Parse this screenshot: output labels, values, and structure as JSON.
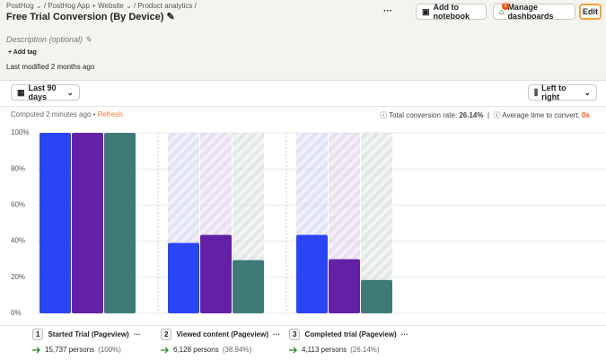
{
  "breadcrumbs": [
    "PostHog",
    "PostHog App + Website",
    "Product analytics"
  ],
  "title": "Free Trial Conversion (By Device)",
  "toolbar": {
    "more": "···",
    "add_to_notebook": "Add to notebook",
    "dashboard_count": "1",
    "manage_dashboards": "Manage dashboards",
    "edit": "Edit"
  },
  "description_placeholder": "Description (optional)",
  "add_tag": "Add tag",
  "last_modified": "Last modified 2 months ago",
  "date_range": "Last 90 days",
  "layout_option": "Left to right",
  "computed": "Computed 2 minutes ago",
  "refresh": "Refresh",
  "total_conversion_label": "Total conversion rate:",
  "total_conversion_value": "26.14%",
  "avg_time_label": "Average time to convert:",
  "avg_time_value": "0s",
  "chart_data": {
    "type": "bar",
    "categories": [
      "Started Trial (Pageview)",
      "Viewed content (Pageview)",
      "Completed trial (Pageview)"
    ],
    "series": [
      {
        "color": "#2a45f5",
        "values": [
          100,
          39,
          43.5
        ]
      },
      {
        "color": "#6520a8",
        "values": [
          100,
          43.5,
          30
        ]
      },
      {
        "color": "#3d7b77",
        "values": [
          100,
          29.5,
          18.5
        ]
      }
    ],
    "ylim": [
      0,
      100
    ],
    "yticks": [
      {
        "value": 0,
        "label": "0%"
      },
      {
        "value": 20,
        "label": "20%"
      },
      {
        "value": 40,
        "label": "40%"
      },
      {
        "value": 60,
        "label": "60%"
      },
      {
        "value": 80,
        "label": "80%"
      },
      {
        "value": 100,
        "label": "100%"
      }
    ],
    "grid": true
  },
  "steps": [
    {
      "number": "1",
      "more": "···",
      "persons": "15,737 persons",
      "percent": "(100%)"
    },
    {
      "number": "2",
      "more": "···",
      "persons": "6,128 persons",
      "percent": "(38.94%)"
    },
    {
      "number": "3",
      "more": "···",
      "persons": "4,113 persons",
      "percent": "(26.14%)"
    }
  ]
}
